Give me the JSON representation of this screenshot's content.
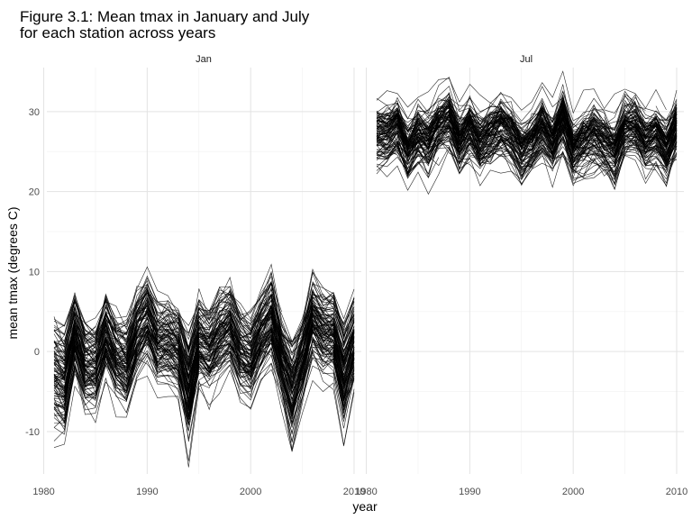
{
  "chart_data": {
    "type": "line",
    "title_line1": "Figure 3.1: Mean tmax in January and July",
    "title_line2": " for each station across years",
    "xlabel": "year",
    "ylabel": "mean tmax (degrees C)",
    "xlim": [
      1980,
      2010
    ],
    "ylim": [
      -15,
      35
    ],
    "x_ticks": [
      1980,
      1990,
      2000,
      2010
    ],
    "y_ticks": [
      -10,
      0,
      10,
      20,
      30
    ],
    "grid": true,
    "legend": "none",
    "facets": [
      {
        "label": "Jan",
        "years": [
          1981,
          1982,
          1983,
          1984,
          1985,
          1986,
          1987,
          1988,
          1989,
          1990,
          1991,
          1992,
          1993,
          1994,
          1995,
          1996,
          1997,
          1998,
          1999,
          2000,
          2001,
          2002,
          2003,
          2004,
          2005,
          2006,
          2007,
          2008,
          2009,
          2010
        ],
        "center": [
          -3,
          -4,
          2,
          -2,
          -2,
          2,
          -1,
          -2,
          2,
          4,
          1,
          1,
          0,
          -5,
          1,
          0,
          2,
          3,
          0,
          -1,
          2,
          4,
          -1,
          -5,
          -1,
          4,
          2,
          2,
          -3,
          1
        ],
        "spread": [
          4,
          4,
          3,
          3,
          3,
          3,
          3,
          3,
          3,
          3,
          3,
          3,
          3,
          4,
          3,
          3,
          3,
          3,
          3,
          3,
          3,
          3,
          3,
          4,
          3,
          3,
          3,
          3,
          4,
          3
        ]
      },
      {
        "label": "Jul",
        "years": [
          1981,
          1982,
          1983,
          1984,
          1985,
          1986,
          1987,
          1988,
          1989,
          1990,
          1991,
          1992,
          1993,
          1994,
          1995,
          1996,
          1997,
          1998,
          1999,
          2000,
          2001,
          2002,
          2003,
          2004,
          2005,
          2006,
          2007,
          2008,
          2009,
          2010
        ],
        "center": [
          27,
          27,
          28,
          25,
          27,
          26,
          28,
          29,
          26,
          28,
          26,
          27,
          28,
          27,
          25,
          26,
          28,
          26,
          29,
          25,
          26,
          27,
          26,
          25,
          28,
          28,
          26,
          27,
          25,
          28
        ],
        "spread": [
          2,
          2,
          2,
          2,
          2,
          2,
          2,
          2,
          2,
          2,
          2,
          2,
          2,
          2,
          2,
          2,
          2,
          2,
          2,
          2,
          2,
          2,
          2,
          2,
          2,
          2,
          2,
          2,
          2,
          2
        ]
      }
    ]
  }
}
